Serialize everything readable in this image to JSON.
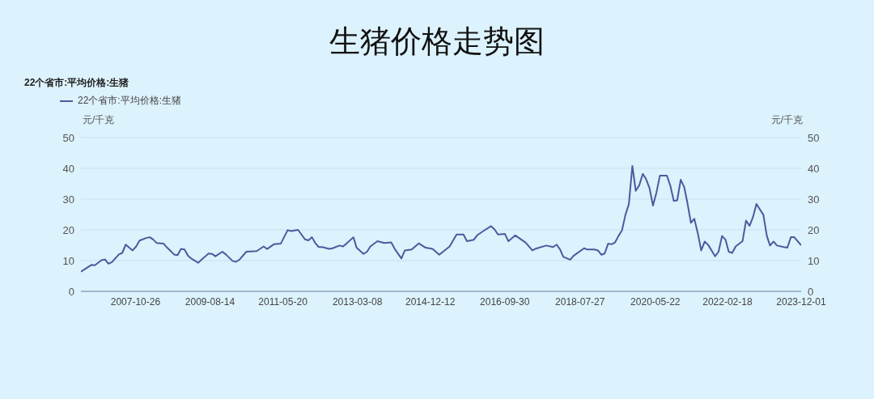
{
  "chart_data": {
    "type": "line",
    "title": "生猪价格走势图",
    "subtitle": "22个省市:平均价格:生猪",
    "ylabel": "元/千克",
    "y2label": "元/千克",
    "x": [
      "2006-07",
      "2006-10",
      "2006-11",
      "2007-01",
      "2007-02",
      "2007-03",
      "2007-04",
      "2007-06",
      "2007-07",
      "2007-08",
      "2007-09",
      "2007-10",
      "2007-11",
      "2007-12",
      "2008-02",
      "2008-03",
      "2008-04",
      "2008-05",
      "2008-07",
      "2008-08",
      "2008-10",
      "2008-11",
      "2008-12",
      "2009-01",
      "2009-02",
      "2009-03",
      "2009-05",
      "2009-06",
      "2009-08",
      "2009-09",
      "2009-10",
      "2009-12",
      "2010-01",
      "2010-03",
      "2010-04",
      "2010-05",
      "2010-07",
      "2010-10",
      "2010-12",
      "2011-01",
      "2011-03",
      "2011-05",
      "2011-07",
      "2011-08",
      "2011-10",
      "2011-12",
      "2012-01",
      "2012-02",
      "2012-03",
      "2012-04",
      "2012-05",
      "2012-07",
      "2012-08",
      "2012-10",
      "2012-11",
      "2012-12",
      "2013-02",
      "2013-03",
      "2013-05",
      "2013-06",
      "2013-07",
      "2013-09",
      "2013-11",
      "2014-01",
      "2014-02",
      "2014-04",
      "2014-05",
      "2014-07",
      "2014-09",
      "2014-11",
      "2015-01",
      "2015-03",
      "2015-06",
      "2015-08",
      "2015-10",
      "2015-11",
      "2016-01",
      "2016-02",
      "2016-04",
      "2016-06",
      "2016-07",
      "2016-08",
      "2016-10",
      "2016-11",
      "2017-01",
      "2017-04",
      "2017-06",
      "2017-07",
      "2017-10",
      "2017-12",
      "2018-01",
      "2018-02",
      "2018-03",
      "2018-05",
      "2018-06",
      "2018-09",
      "2018-10",
      "2018-12",
      "2019-01",
      "2019-02",
      "2019-03",
      "2019-04",
      "2019-05",
      "2019-06",
      "2019-07",
      "2019-08",
      "2019-09",
      "2019-10",
      "2019-11",
      "2019-12",
      "2020-01",
      "2020-02",
      "2020-03",
      "2020-04",
      "2020-05",
      "2020-06",
      "2020-07",
      "2020-09",
      "2020-10",
      "2020-11",
      "2020-12",
      "2021-01",
      "2021-02",
      "2021-03",
      "2021-04",
      "2021-05",
      "2021-06",
      "2021-07",
      "2021-08",
      "2021-09",
      "2021-11",
      "2021-12",
      "2022-01",
      "2022-02",
      "2022-03",
      "2022-04",
      "2022-05",
      "2022-07",
      "2022-08",
      "2022-09",
      "2022-10",
      "2022-11",
      "2023-01",
      "2023-02",
      "2023-03",
      "2023-04",
      "2023-05",
      "2023-07",
      "2023-08",
      "2023-09",
      "2023-10",
      "2023-12-01"
    ],
    "series": [
      {
        "name": "22个省市:平均价格:生猪",
        "color": "#4b5a9c",
        "values": [
          6.4,
          8.6,
          8.5,
          10.2,
          10.3,
          9.0,
          9.5,
          12.0,
          12.5,
          15.2,
          14.2,
          13.3,
          14.6,
          16.5,
          17.4,
          17.6,
          16.8,
          15.7,
          15.5,
          14.2,
          12.0,
          11.8,
          13.8,
          13.6,
          11.6,
          10.7,
          9.3,
          10.3,
          12.3,
          12.2,
          11.4,
          12.9,
          12.0,
          9.9,
          9.6,
          10.3,
          12.9,
          13.1,
          14.6,
          13.8,
          15.3,
          15.5,
          19.9,
          19.6,
          20.0,
          16.9,
          16.6,
          17.6,
          15.7,
          14.4,
          14.4,
          13.8,
          14.0,
          14.9,
          14.6,
          15.5,
          17.6,
          14.2,
          12.2,
          12.9,
          14.6,
          16.3,
          15.7,
          15.9,
          13.8,
          10.7,
          13.3,
          13.6,
          15.6,
          14.2,
          13.8,
          11.9,
          14.6,
          18.5,
          18.5,
          16.3,
          16.8,
          18.3,
          19.8,
          21.2,
          20.2,
          18.5,
          18.7,
          16.3,
          18.2,
          15.9,
          13.3,
          13.9,
          14.9,
          14.4,
          15.2,
          13.6,
          11.2,
          10.3,
          11.6,
          14.0,
          13.6,
          13.6,
          13.3,
          11.9,
          12.3,
          15.5,
          15.3,
          15.9,
          18.0,
          19.8,
          24.9,
          28.4,
          40.8,
          32.7,
          34.5,
          38.2,
          36.5,
          33.5,
          27.9,
          32.2,
          37.6,
          37.6,
          34.4,
          29.4,
          29.6,
          36.3,
          33.9,
          28.8,
          22.3,
          23.6,
          18.9,
          13.3,
          16.2,
          15.1,
          11.4,
          12.9,
          18.0,
          16.8,
          12.9,
          12.5,
          14.6,
          16.3,
          23.0,
          21.3,
          24.1,
          28.4,
          24.9,
          18.0,
          14.9,
          16.2,
          14.9,
          14.4,
          14.2,
          17.6,
          17.6,
          15.0
        ]
      }
    ],
    "xlim": [
      "2006-07",
      "2023-12-01"
    ],
    "xticks": [
      {
        "value": "2007-10-26",
        "label": "2007-10-26"
      },
      {
        "value": "2009-08-14",
        "label": "2009-08-14"
      },
      {
        "value": "2011-05-20",
        "label": "2011-05-20"
      },
      {
        "value": "2013-03-08",
        "label": "2013-03-08"
      },
      {
        "value": "2014-12-12",
        "label": "2014-12-12"
      },
      {
        "value": "2016-09-30",
        "label": "2016-09-30"
      },
      {
        "value": "2018-07-27",
        "label": "2018-07-27"
      },
      {
        "value": "2020-05-22",
        "label": "2020-05-22"
      },
      {
        "value": "2022-02-18",
        "label": "2022-02-18"
      },
      {
        "value": "2023-12-01",
        "label": "2023-12-01"
      }
    ],
    "ylim": [
      0,
      50
    ],
    "yticks": [
      0,
      10,
      20,
      30,
      40,
      50
    ],
    "y2lim": [
      0,
      50
    ],
    "y2ticks": [
      0,
      10,
      20,
      30,
      40,
      50
    ],
    "grid": "y",
    "legend": "top left",
    "marker": "none",
    "line_style": "solid"
  }
}
